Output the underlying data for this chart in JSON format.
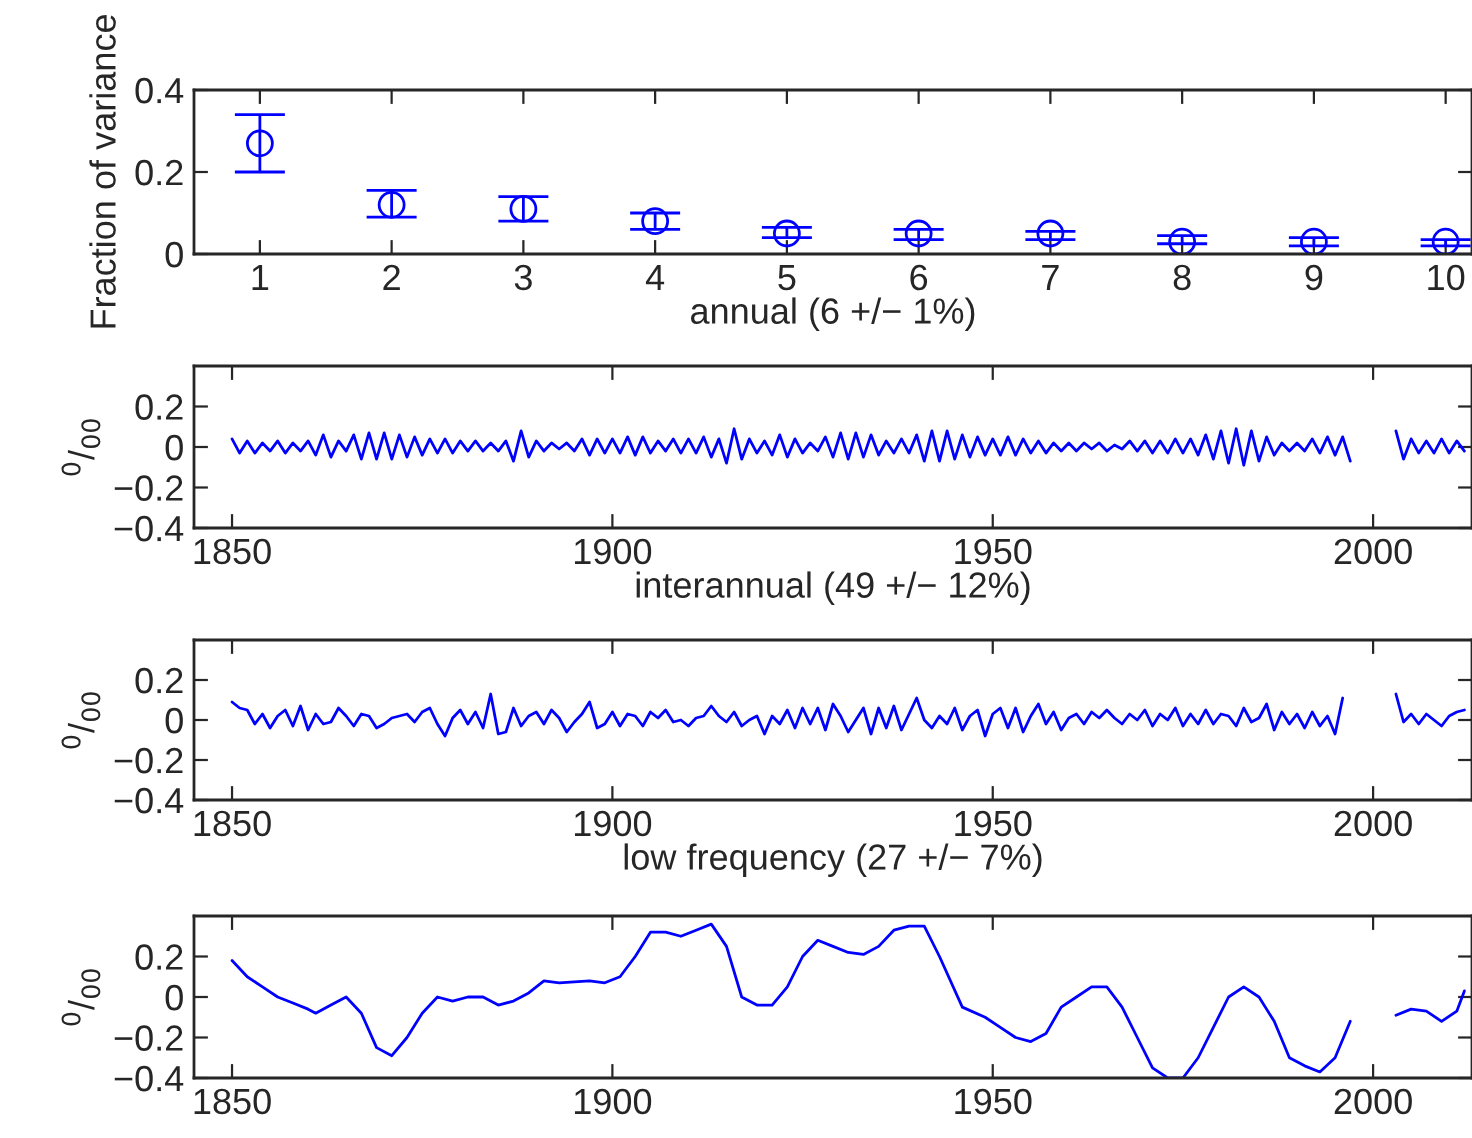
{
  "chart_data": [
    {
      "type": "scatter",
      "ylabel": "Fraction of variance",
      "xlabel": "annual (6 +/− 1%)",
      "marker": "circle",
      "grid": false,
      "x": [
        1,
        2,
        3,
        4,
        5,
        6,
        7,
        8,
        9,
        10
      ],
      "xlim": [
        0.5,
        10.2
      ],
      "xticks": [
        1,
        2,
        3,
        4,
        5,
        6,
        7,
        8,
        9,
        10
      ],
      "ylim": [
        0,
        0.4
      ],
      "yticks": [
        0,
        0.2,
        0.4
      ],
      "series": [
        {
          "color": "#0000ff",
          "values": [
            0.27,
            0.12,
            0.11,
            0.08,
            0.05,
            0.05,
            0.05,
            0.03,
            0.03,
            0.03
          ],
          "errors": [
            [
              0.2,
              0.34
            ],
            [
              0.09,
              0.155
            ],
            [
              0.08,
              0.14
            ],
            [
              0.06,
              0.1
            ],
            [
              0.04,
              0.065
            ],
            [
              0.035,
              0.06
            ],
            [
              0.035,
              0.055
            ],
            [
              0.025,
              0.045
            ],
            [
              0.02,
              0.04
            ],
            [
              0.02,
              0.035
            ]
          ]
        }
      ]
    },
    {
      "type": "line",
      "ylabel": "$^{0}$/$_{00}$",
      "xlabel": "interannual (49 +/− 12%)",
      "grid": false,
      "xlim": [
        1845,
        2013
      ],
      "xticks": [
        1850,
        1900,
        1950,
        2000
      ],
      "ylim": [
        -0.4,
        0.4
      ],
      "yticks": [
        -0.4,
        -0.2,
        0,
        0.2
      ],
      "x": [
        1850,
        1851,
        1852,
        1853,
        1854,
        1855,
        1856,
        1857,
        1858,
        1859,
        1860,
        1861,
        1862,
        1863,
        1864,
        1865,
        1866,
        1867,
        1868,
        1869,
        1870,
        1871,
        1872,
        1873,
        1874,
        1875,
        1876,
        1877,
        1878,
        1879,
        1880,
        1881,
        1882,
        1883,
        1884,
        1885,
        1886,
        1887,
        1888,
        1889,
        1890,
        1891,
        1892,
        1893,
        1894,
        1895,
        1896,
        1897,
        1898,
        1899,
        1900,
        1901,
        1902,
        1903,
        1904,
        1905,
        1906,
        1907,
        1908,
        1909,
        1910,
        1911,
        1912,
        1913,
        1914,
        1915,
        1916,
        1917,
        1918,
        1919,
        1920,
        1921,
        1922,
        1923,
        1924,
        1925,
        1926,
        1927,
        1928,
        1929,
        1930,
        1931,
        1932,
        1933,
        1934,
        1935,
        1936,
        1937,
        1938,
        1939,
        1940,
        1941,
        1942,
        1943,
        1944,
        1945,
        1946,
        1947,
        1948,
        1949,
        1950,
        1951,
        1952,
        1953,
        1954,
        1955,
        1956,
        1957,
        1958,
        1959,
        1960,
        1961,
        1962,
        1963,
        1964,
        1965,
        1966,
        1967,
        1968,
        1969,
        1970,
        1971,
        1972,
        1973,
        1974,
        1975,
        1976,
        1977,
        1978,
        1979,
        1980,
        1981,
        1982,
        1983,
        1984,
        1985,
        1986,
        1987,
        1988,
        1989,
        1990,
        1991,
        1992,
        1993,
        1994,
        1995,
        1996,
        1997,
        1998,
        1999,
        2000,
        2001,
        2002,
        2003,
        2004,
        2005,
        2006,
        2007,
        2008,
        2009,
        2010,
        2011,
        2012
      ],
      "series": [
        {
          "color": "#0000ff",
          "values": [
            0.04,
            -0.03,
            0.03,
            -0.03,
            0.02,
            -0.02,
            0.03,
            -0.03,
            0.02,
            -0.02,
            0.03,
            -0.04,
            0.06,
            -0.05,
            0.03,
            -0.02,
            0.06,
            -0.06,
            0.07,
            -0.06,
            0.07,
            -0.06,
            0.06,
            -0.05,
            0.05,
            -0.04,
            0.04,
            -0.03,
            0.04,
            -0.03,
            0.03,
            -0.02,
            0.03,
            -0.02,
            0.02,
            -0.02,
            0.03,
            -0.07,
            0.08,
            -0.05,
            0.03,
            -0.02,
            0.02,
            -0.01,
            0.02,
            -0.02,
            0.04,
            -0.04,
            0.04,
            -0.03,
            0.04,
            -0.03,
            0.05,
            -0.04,
            0.05,
            -0.03,
            0.03,
            -0.02,
            0.04,
            -0.03,
            0.04,
            -0.03,
            0.05,
            -0.05,
            0.04,
            -0.08,
            0.09,
            -0.06,
            0.04,
            -0.03,
            0.03,
            -0.04,
            0.06,
            -0.05,
            0.04,
            -0.03,
            0.02,
            -0.02,
            0.05,
            -0.05,
            0.07,
            -0.06,
            0.07,
            -0.05,
            0.06,
            -0.04,
            0.03,
            -0.03,
            0.04,
            -0.03,
            0.06,
            -0.07,
            0.08,
            -0.07,
            0.08,
            -0.06,
            0.06,
            -0.05,
            0.05,
            -0.04,
            0.04,
            -0.04,
            0.05,
            -0.04,
            0.04,
            -0.03,
            0.03,
            -0.03,
            0.02,
            -0.02,
            0.02,
            -0.02,
            0.02,
            -0.01,
            0.02,
            -0.02,
            0.01,
            -0.01,
            0.03,
            -0.02,
            0.03,
            -0.03,
            0.03,
            -0.03,
            0.04,
            -0.03,
            0.04,
            -0.04,
            0.06,
            -0.06,
            0.08,
            -0.08,
            0.09,
            -0.09,
            0.08,
            -0.07,
            0.05,
            -0.04,
            0.02,
            -0.02,
            0.02,
            -0.02,
            0.04,
            -0.03,
            0.05,
            -0.04,
            0.05,
            -0.07,
            null,
            null,
            null,
            null,
            null,
            0.08,
            -0.06,
            0.04,
            -0.03,
            0.03,
            -0.03,
            0.04,
            -0.03,
            0.03,
            -0.02
          ]
        }
      ]
    },
    {
      "type": "line",
      "ylabel": "$^{0}$/$_{00}$",
      "xlabel": "low frequency (27 +/− 7%)",
      "grid": false,
      "xlim": [
        1845,
        2013
      ],
      "xticks": [
        1850,
        1900,
        1950,
        2000
      ],
      "ylim": [
        -0.4,
        0.4
      ],
      "yticks": [
        -0.4,
        -0.2,
        0,
        0.2
      ],
      "x": [
        1850,
        1851,
        1852,
        1853,
        1854,
        1855,
        1856,
        1857,
        1858,
        1859,
        1860,
        1861,
        1862,
        1863,
        1864,
        1865,
        1866,
        1867,
        1868,
        1869,
        1870,
        1871,
        1872,
        1873,
        1874,
        1875,
        1876,
        1877,
        1878,
        1879,
        1880,
        1881,
        1882,
        1883,
        1884,
        1885,
        1886,
        1887,
        1888,
        1889,
        1890,
        1891,
        1892,
        1893,
        1894,
        1895,
        1896,
        1897,
        1898,
        1899,
        1900,
        1901,
        1902,
        1903,
        1904,
        1905,
        1906,
        1907,
        1908,
        1909,
        1910,
        1911,
        1912,
        1913,
        1914,
        1915,
        1916,
        1917,
        1918,
        1919,
        1920,
        1921,
        1922,
        1923,
        1924,
        1925,
        1926,
        1927,
        1928,
        1929,
        1930,
        1931,
        1932,
        1933,
        1934,
        1935,
        1936,
        1937,
        1938,
        1939,
        1940,
        1941,
        1942,
        1943,
        1944,
        1945,
        1946,
        1947,
        1948,
        1949,
        1950,
        1951,
        1952,
        1953,
        1954,
        1955,
        1956,
        1957,
        1958,
        1959,
        1960,
        1961,
        1962,
        1963,
        1964,
        1965,
        1966,
        1967,
        1968,
        1969,
        1970,
        1971,
        1972,
        1973,
        1974,
        1975,
        1976,
        1977,
        1978,
        1979,
        1980,
        1981,
        1982,
        1983,
        1984,
        1985,
        1986,
        1987,
        1988,
        1989,
        1990,
        1991,
        1992,
        1993,
        1994,
        1995,
        1996,
        1997,
        1998,
        1999,
        2000,
        2001,
        2002,
        2003,
        2004,
        2005,
        2006,
        2007,
        2008,
        2009,
        2010,
        2011,
        2012
      ],
      "series": [
        {
          "color": "#0000ff",
          "values": [
            0.09,
            0.06,
            0.05,
            -0.02,
            0.03,
            -0.04,
            0.02,
            0.05,
            -0.03,
            0.07,
            -0.05,
            0.03,
            -0.02,
            -0.01,
            0.06,
            0.02,
            -0.03,
            0.03,
            0.02,
            -0.04,
            -0.02,
            0.01,
            0.02,
            0.03,
            -0.01,
            0.04,
            0.06,
            -0.02,
            -0.08,
            0.01,
            0.05,
            -0.02,
            0.04,
            -0.04,
            0.13,
            -0.07,
            -0.06,
            0.06,
            -0.03,
            0.02,
            0.04,
            -0.02,
            0.05,
            0.01,
            -0.06,
            -0.01,
            0.03,
            0.09,
            -0.04,
            -0.02,
            0.04,
            -0.03,
            0.03,
            0.02,
            -0.03,
            0.04,
            0.01,
            0.05,
            -0.01,
            0.0,
            -0.03,
            0.01,
            0.02,
            0.07,
            0.02,
            -0.01,
            0.04,
            -0.03,
            0.0,
            0.02,
            -0.07,
            0.02,
            -0.02,
            0.05,
            -0.04,
            0.06,
            -0.02,
            0.06,
            -0.05,
            0.08,
            0.02,
            -0.06,
            0.0,
            0.06,
            -0.07,
            0.06,
            -0.04,
            0.07,
            -0.05,
            0.03,
            0.11,
            0.0,
            -0.04,
            0.02,
            -0.02,
            0.06,
            -0.05,
            0.02,
            0.05,
            -0.08,
            0.03,
            0.06,
            -0.04,
            0.06,
            -0.06,
            0.02,
            0.08,
            -0.02,
            0.04,
            -0.05,
            0.01,
            0.03,
            -0.02,
            0.04,
            0.01,
            0.05,
            0.01,
            -0.02,
            0.03,
            0.0,
            0.05,
            -0.03,
            0.03,
            0.0,
            0.06,
            -0.03,
            0.03,
            -0.02,
            0.05,
            -0.02,
            0.03,
            0.02,
            -0.03,
            0.06,
            -0.01,
            0.01,
            0.08,
            -0.05,
            0.04,
            -0.02,
            0.03,
            -0.04,
            0.04,
            -0.03,
            0.02,
            -0.07,
            0.11,
            null,
            null,
            null,
            null,
            null,
            null,
            0.13,
            -0.01,
            0.03,
            -0.02,
            0.03,
            0.0,
            -0.03,
            0.02,
            0.04,
            0.05
          ]
        }
      ]
    },
    {
      "type": "line",
      "ylabel": "$^{0}$/$_{00}$",
      "grid": false,
      "xlim": [
        1845,
        2013
      ],
      "xticks": [
        1850,
        1900,
        1950,
        2000
      ],
      "ylim": [
        -0.4,
        0.4
      ],
      "yticks": [
        -0.4,
        -0.2,
        0,
        0.2
      ],
      "x": [
        1850,
        1852,
        1854,
        1856,
        1858,
        1860,
        1861,
        1863,
        1865,
        1867,
        1869,
        1871,
        1873,
        1875,
        1877,
        1879,
        1881,
        1883,
        1885,
        1887,
        1889,
        1891,
        1893,
        1897,
        1899,
        1901,
        1903,
        1905,
        1907,
        1909,
        1911,
        1913,
        1915,
        1917,
        1919,
        1921,
        1923,
        1925,
        1927,
        1929,
        1931,
        1933,
        1935,
        1937,
        1939,
        1941,
        1943,
        1946,
        1949,
        1951,
        1953,
        1955,
        1957,
        1959,
        1961,
        1963,
        1965,
        1967,
        1969,
        1971,
        1973,
        1975,
        1977,
        1979,
        1981,
        1983,
        1985,
        1987,
        1989,
        1991,
        1993,
        1995,
        1997,
        1998,
        2003,
        2005,
        2007,
        2009,
        2011,
        2012
      ],
      "series": [
        {
          "color": "#0000ff",
          "values": [
            0.18,
            0.1,
            0.05,
            0.0,
            -0.03,
            -0.06,
            -0.08,
            -0.04,
            0.0,
            -0.08,
            -0.25,
            -0.29,
            -0.2,
            -0.08,
            0.0,
            -0.02,
            0.0,
            0.0,
            -0.04,
            -0.02,
            0.02,
            0.08,
            0.07,
            0.08,
            0.07,
            0.1,
            0.2,
            0.32,
            0.32,
            0.3,
            0.33,
            0.36,
            0.25,
            0.0,
            -0.04,
            -0.04,
            0.05,
            0.2,
            0.28,
            0.25,
            0.22,
            0.21,
            0.25,
            0.33,
            0.35,
            0.35,
            0.2,
            -0.05,
            -0.1,
            -0.15,
            -0.2,
            -0.22,
            -0.18,
            -0.05,
            0.0,
            0.05,
            0.05,
            -0.05,
            -0.2,
            -0.35,
            -0.4,
            -0.4,
            -0.3,
            -0.15,
            0.0,
            0.05,
            0.0,
            -0.12,
            -0.3,
            -0.34,
            -0.37,
            -0.3,
            -0.12,
            null,
            -0.09,
            -0.06,
            -0.07,
            -0.12,
            -0.07,
            0.03
          ]
        }
      ]
    }
  ]
}
